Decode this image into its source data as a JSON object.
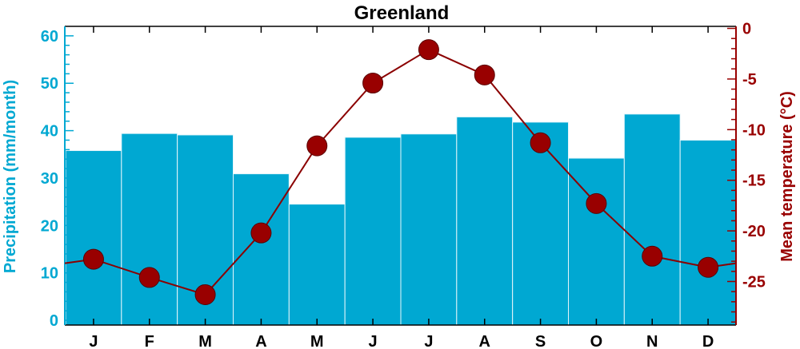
{
  "chart_data": {
    "type": "bar+line",
    "title": "Greenland",
    "categories": [
      "J",
      "F",
      "M",
      "A",
      "M",
      "J",
      "J",
      "A",
      "S",
      "O",
      "N",
      "D"
    ],
    "series": [
      {
        "name": "Precipitation",
        "type": "bar",
        "axis": "left",
        "values": [
          35.8,
          39.4,
          39.1,
          30.9,
          24.5,
          38.6,
          39.3,
          42.9,
          41.8,
          34.2,
          43.5,
          38.0
        ]
      },
      {
        "name": "Mean temperature",
        "type": "line",
        "axis": "right",
        "values": [
          -22.8,
          -24.6,
          -26.3,
          -20.2,
          -11.6,
          -5.4,
          -2.1,
          -4.6,
          -11.3,
          -17.3,
          -22.5,
          -23.6
        ]
      }
    ],
    "left_axis": {
      "label": "Precipitation (mm/month)",
      "range": [
        -1,
        62
      ],
      "ticks": [
        "0",
        "10",
        "20",
        "30",
        "40",
        "50",
        "60"
      ]
    },
    "right_axis": {
      "label": "Mean temperature (°C)",
      "range": [
        -29.3,
        0.2
      ],
      "ticks": [
        "0",
        "-5",
        "-10",
        "-15",
        "-20",
        "-25"
      ]
    },
    "colors": {
      "bars": "#00a8d2",
      "bar_edge": "#e6f6fb",
      "line": "#8b0000",
      "marker": "#990000",
      "left_axis": "#00a8d2",
      "right_axis": "#990000"
    },
    "grid": false,
    "legend": "none"
  }
}
